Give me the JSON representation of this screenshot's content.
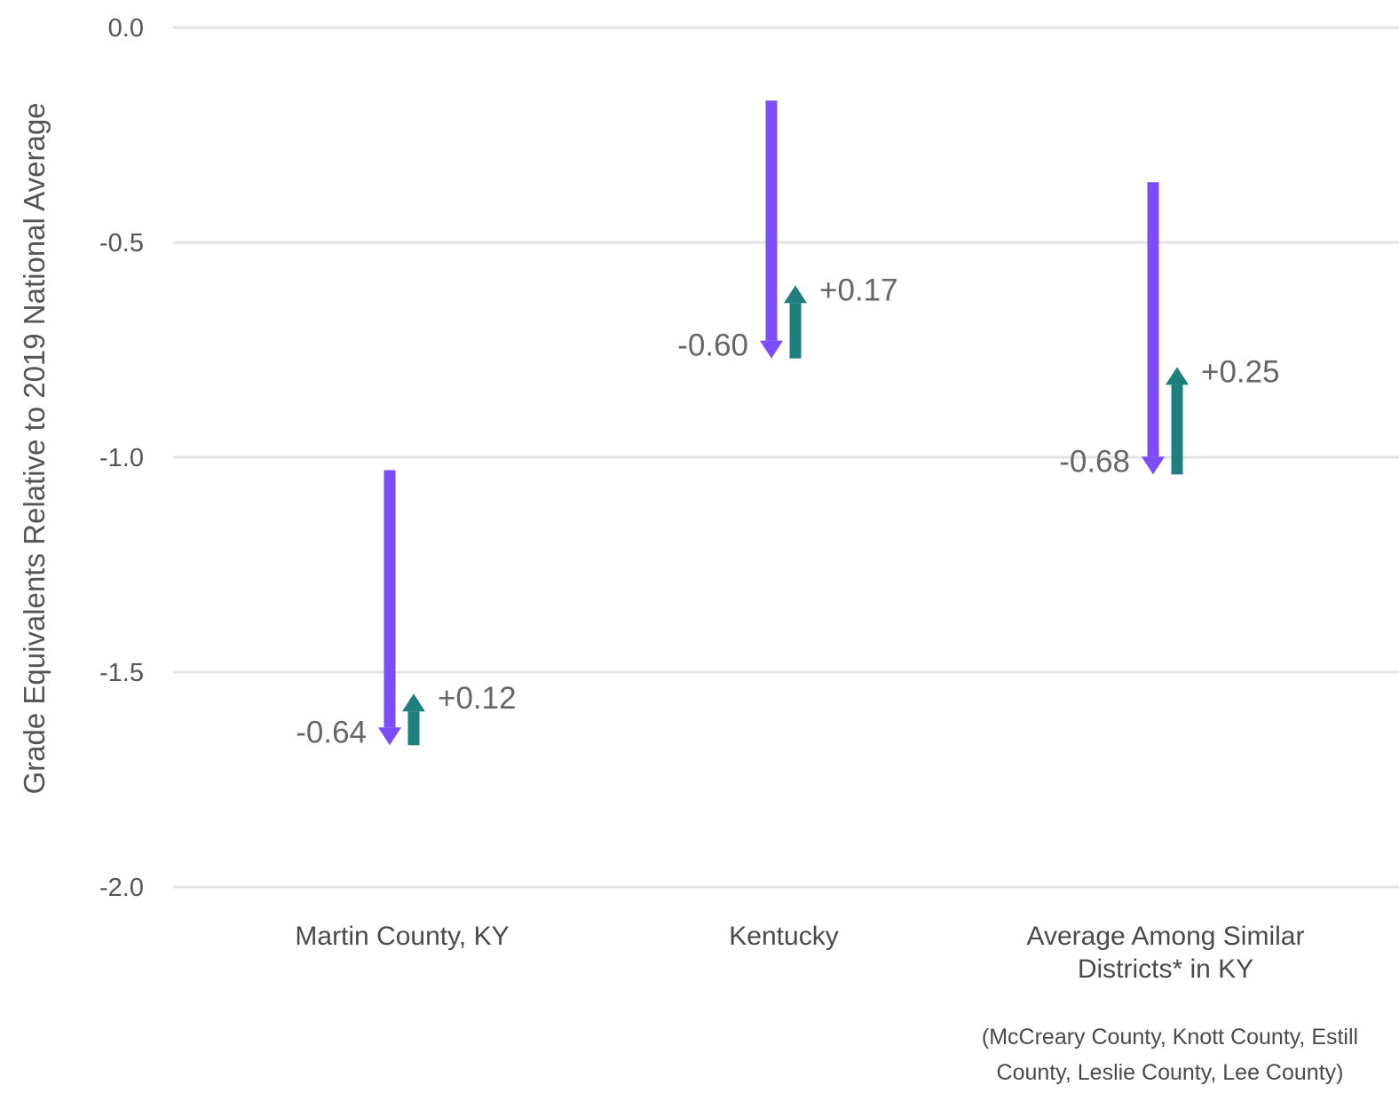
{
  "chart_data": {
    "type": "arrow",
    "ylabel": "Grade Equivalents Relative to 2019 National Average",
    "ylim": [
      -2.0,
      0.0
    ],
    "yticks": [
      "0.0",
      "-0.5",
      "-1.0",
      "-1.5",
      "-2.0"
    ],
    "grid": true,
    "colors": {
      "decline": "#7c4dff",
      "recovery": "#1f7f7c",
      "grid": "#e3e3e3"
    },
    "categories": [
      {
        "label_lines": [
          "Martin County, KY"
        ],
        "start": -1.03,
        "after_decline": -1.67,
        "after_recovery": -1.55,
        "decline_label": "-0.64",
        "recovery_label": "+0.12"
      },
      {
        "label_lines": [
          "Kentucky"
        ],
        "start": -0.17,
        "after_decline": -0.77,
        "after_recovery": -0.6,
        "decline_label": "-0.60",
        "recovery_label": "+0.17"
      },
      {
        "label_lines": [
          "Average Among Similar",
          "Districts* in KY"
        ],
        "start": -0.36,
        "after_decline": -1.04,
        "after_recovery": -0.79,
        "decline_label": "-0.68",
        "recovery_label": "+0.25"
      }
    ],
    "footnote_lines": [
      "(McCreary County, Knott County, Estill",
      "County, Leslie County, Lee County)"
    ]
  }
}
